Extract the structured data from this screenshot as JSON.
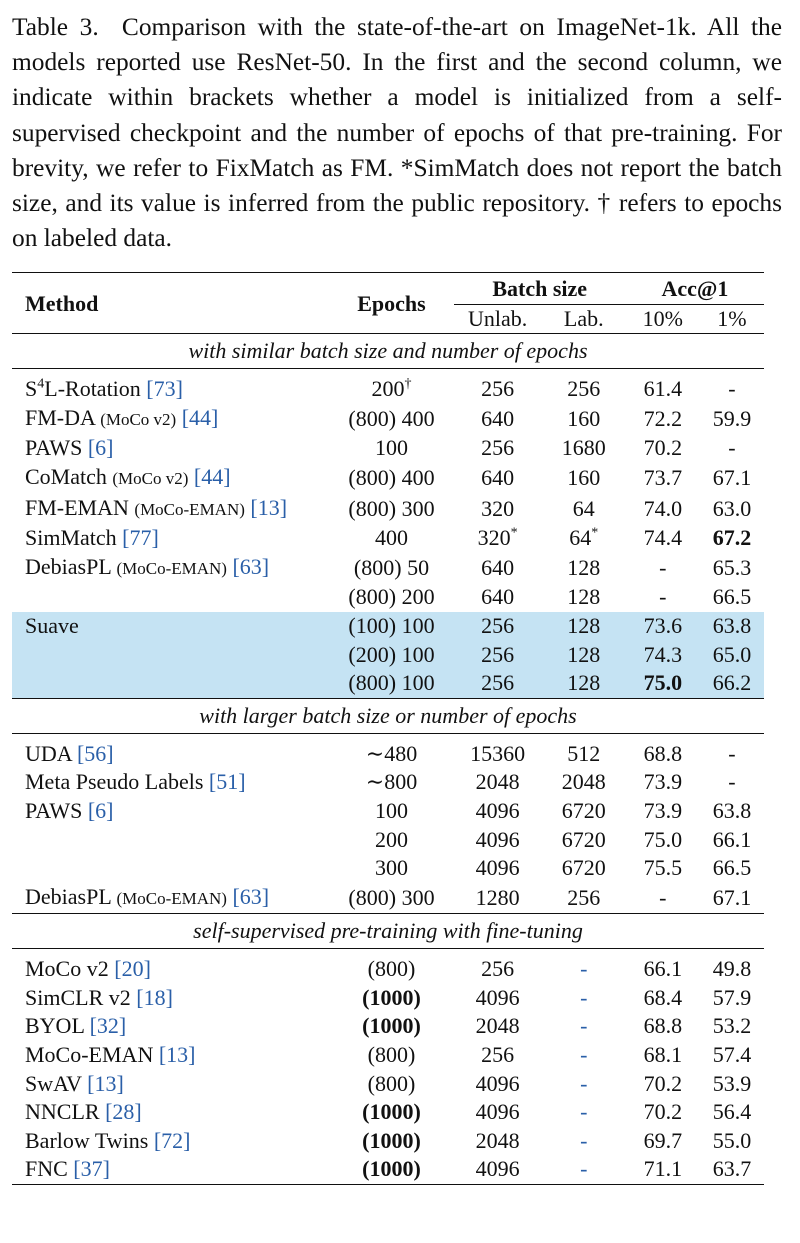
{
  "caption": {
    "label": "Table 3.",
    "text": "Comparison with the state-of-the-art on ImageNet-1k. All the models reported use ResNet-50. In the first and the second column, we indicate within brackets whether a model is initialized from a self-supervised checkpoint and the number of epochs of that pre-training. For brevity, we refer to FixMatch as FM. *SimMatch does not report the batch size, and its value is inferred from the public repository. † refers to epochs on labeled data."
  },
  "table": {
    "headers": {
      "method": "Method",
      "epochs": "Epochs",
      "batch_size": "Batch size",
      "acc": "Acc@1",
      "unlab": "Unlab.",
      "lab": "Lab.",
      "acc10": "10%",
      "acc1": "1%"
    },
    "sections": [
      {
        "title": "with similar batch size and number of epochs",
        "rows": [
          {
            "method": "S4L-Rotation",
            "note": "",
            "cite": "[73]",
            "epochs": "200†",
            "unlab": "256",
            "lab": "256",
            "acc10": "61.4",
            "acc1": "-"
          },
          {
            "method": "FM-DA",
            "note": "(MoCo v2)",
            "cite": "[44]",
            "epochs": "(800) 400",
            "unlab": "640",
            "lab": "160",
            "acc10": "72.2",
            "acc1": "59.9"
          },
          {
            "method": "PAWS",
            "note": "",
            "cite": "[6]",
            "epochs": "100",
            "unlab": "256",
            "lab": "1680",
            "acc10": "70.2",
            "acc1": "-"
          },
          {
            "method": "CoMatch",
            "note": "(MoCo v2)",
            "cite": "[44]",
            "epochs": "(800) 400",
            "unlab": "640",
            "lab": "160",
            "acc10": "73.7",
            "acc1": "67.1"
          },
          {
            "method": "FM-EMAN",
            "note": "(MoCo-EMAN)",
            "cite": "[13]",
            "epochs": "(800) 300",
            "unlab": "320",
            "lab": "64",
            "acc10": "74.0",
            "acc1": "63.0"
          },
          {
            "method": "SimMatch",
            "note": "",
            "cite": "[77]",
            "epochs": "400",
            "unlab": "320*",
            "lab": "64*",
            "acc10": "74.4",
            "acc1": "67.2"
          },
          {
            "method": "DebiasPL",
            "note": "(MoCo-EMAN)",
            "cite": "[63]",
            "epochs": "(800) 50",
            "unlab": "640",
            "lab": "128",
            "acc10": "-",
            "acc1": "65.3"
          },
          {
            "method": "",
            "note": "",
            "cite": "",
            "epochs": "(800) 200",
            "unlab": "640",
            "lab": "128",
            "acc10": "-",
            "acc1": "66.5"
          },
          {
            "method": "Suave",
            "note": "",
            "cite": "",
            "epochs": "(100) 100",
            "unlab": "256",
            "lab": "128",
            "acc10": "73.6",
            "acc1": "63.8"
          },
          {
            "method": "",
            "note": "",
            "cite": "",
            "epochs": "(200) 100",
            "unlab": "256",
            "lab": "128",
            "acc10": "74.3",
            "acc1": "65.0"
          },
          {
            "method": "",
            "note": "",
            "cite": "",
            "epochs": "(800) 100",
            "unlab": "256",
            "lab": "128",
            "acc10": "75.0",
            "acc1": "66.2"
          }
        ]
      },
      {
        "title": "with larger batch size or number of epochs",
        "rows": [
          {
            "method": "UDA",
            "note": "",
            "cite": "[56]",
            "epochs": "∼480",
            "unlab": "15360",
            "lab": "512",
            "acc10": "68.8",
            "acc1": "-"
          },
          {
            "method": "Meta Pseudo Labels",
            "note": "",
            "cite": "[51]",
            "epochs": "∼800",
            "unlab": "2048",
            "lab": "2048",
            "acc10": "73.9",
            "acc1": "-"
          },
          {
            "method": "PAWS",
            "note": "",
            "cite": "[6]",
            "epochs": "100",
            "unlab": "4096",
            "lab": "6720",
            "acc10": "73.9",
            "acc1": "63.8"
          },
          {
            "method": "",
            "note": "",
            "cite": "",
            "epochs": "200",
            "unlab": "4096",
            "lab": "6720",
            "acc10": "75.0",
            "acc1": "66.1"
          },
          {
            "method": "",
            "note": "",
            "cite": "",
            "epochs": "300",
            "unlab": "4096",
            "lab": "6720",
            "acc10": "75.5",
            "acc1": "66.5"
          },
          {
            "method": "DebiasPL",
            "note": "(MoCo-EMAN)",
            "cite": "[63]",
            "epochs": "(800) 300",
            "unlab": "1280",
            "lab": "256",
            "acc10": "-",
            "acc1": "67.1"
          }
        ]
      },
      {
        "title": "self-supervised pre-training with fine-tuning",
        "rows": [
          {
            "method": "MoCo v2",
            "note": "",
            "cite": "[20]",
            "epochs": "(800)",
            "unlab": "256",
            "lab": "-",
            "acc10": "66.1",
            "acc1": "49.8"
          },
          {
            "method": "SimCLR v2",
            "note": "",
            "cite": "[18]",
            "epochs": "(1000)",
            "unlab": "4096",
            "lab": "-",
            "acc10": "68.4",
            "acc1": "57.9"
          },
          {
            "method": "BYOL",
            "note": "",
            "cite": "[32]",
            "epochs": "(1000)",
            "unlab": "2048",
            "lab": "-",
            "acc10": "68.8",
            "acc1": "53.2"
          },
          {
            "method": "MoCo-EMAN",
            "note": "",
            "cite": "[13]",
            "epochs": "(800)",
            "unlab": "256",
            "lab": "-",
            "acc10": "68.1",
            "acc1": "57.4"
          },
          {
            "method": "SwAV",
            "note": "",
            "cite": "[13]",
            "epochs": "(800)",
            "unlab": "4096",
            "lab": "-",
            "acc10": "70.2",
            "acc1": "53.9"
          },
          {
            "method": "NNCLR",
            "note": "",
            "cite": "[28]",
            "epochs": "(1000)",
            "unlab": "4096",
            "lab": "-",
            "acc10": "70.2",
            "acc1": "56.4"
          },
          {
            "method": "Barlow Twins",
            "note": "",
            "cite": "[72]",
            "epochs": "(1000)",
            "unlab": "2048",
            "lab": "-",
            "acc10": "69.7",
            "acc1": "55.0"
          },
          {
            "method": "FNC",
            "note": "",
            "cite": "[37]",
            "epochs": "(1000)",
            "unlab": "4096",
            "lab": "-",
            "acc10": "71.1",
            "acc1": "63.7"
          }
        ]
      }
    ]
  },
  "colors": {
    "highlight": "#c5e3f3",
    "citation": "#2a5fa8",
    "text": "#111111"
  }
}
